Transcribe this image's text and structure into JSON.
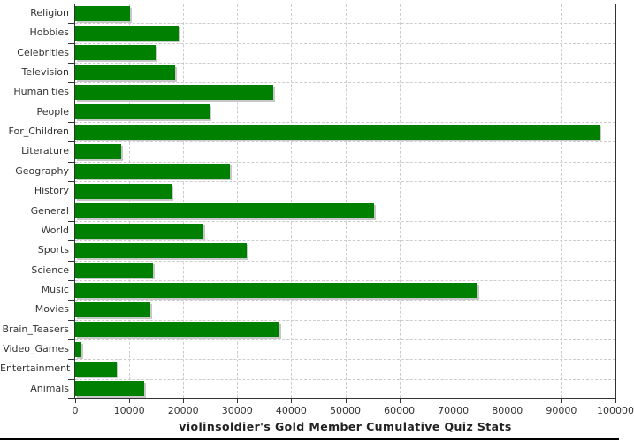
{
  "title": "violinsoldier's Gold Member Cumulative Quiz Stats",
  "colors": {
    "bar": "#008000",
    "bar_shadow": "#c8c8c8",
    "gridline": "#cccccc",
    "axis": "#333333",
    "tick_label": "#333333",
    "title_text": "#222222",
    "bottom_rule": "#000000",
    "background": "#ffffff"
  },
  "chart_data": {
    "type": "bar",
    "orientation": "horizontal",
    "title": "violinsoldier's Gold Member Cumulative Quiz Stats",
    "xlabel": "",
    "ylabel": "",
    "xlim": [
      0,
      100000
    ],
    "grid": true,
    "legend": "none",
    "categories": [
      "Religion",
      "Hobbies",
      "Celebrities",
      "Television",
      "Humanities",
      "People",
      "For_Children",
      "Literature",
      "Geography",
      "History",
      "General",
      "World",
      "Sports",
      "Science",
      "Music",
      "Movies",
      "Brain_Teasers",
      "Video_Games",
      "Entertainment",
      "Animals"
    ],
    "values": [
      10200,
      19100,
      14900,
      18500,
      36700,
      24800,
      97000,
      8500,
      28600,
      17800,
      55300,
      23700,
      31700,
      14400,
      74500,
      13900,
      37800,
      1200,
      7700,
      12700
    ],
    "x_ticks": [
      0,
      10000,
      20000,
      30000,
      40000,
      50000,
      60000,
      70000,
      80000,
      90000,
      100000
    ],
    "x_tick_labels": [
      "0",
      "10000",
      "20000",
      "30000",
      "40000",
      "50000",
      "60000",
      "70000",
      "80000",
      "90000",
      "100000"
    ]
  }
}
